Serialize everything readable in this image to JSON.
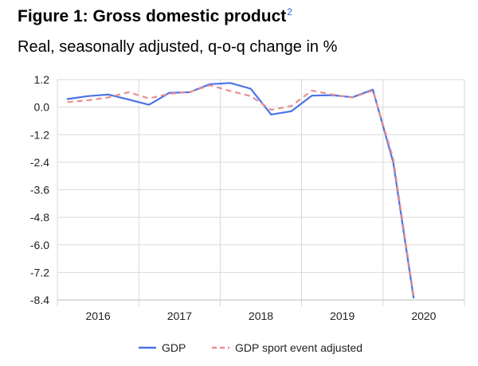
{
  "figure_label": "Figure 1:",
  "title": "Gross domestic product",
  "title_footnote": "2",
  "subtitle": "Real, seasonally adjusted, q-o-q change in %",
  "chart_data": {
    "type": "line",
    "title": "Figure 1: Gross domestic product",
    "subtitle": "Real, seasonally adjusted, q-o-q change in %",
    "xlabel": "",
    "ylabel": "",
    "ylim": [
      -8.4,
      1.2
    ],
    "yticks": [
      "1.2",
      "0.0",
      "-1.2",
      "-2.4",
      "-3.6",
      "-4.8",
      "-6.0",
      "-7.2",
      "-8.4"
    ],
    "year_labels": [
      "2016",
      "2017",
      "2018",
      "2019",
      "2020"
    ],
    "x": [
      "2016 Q1",
      "2016 Q2",
      "2016 Q3",
      "2016 Q4",
      "2017 Q1",
      "2017 Q2",
      "2017 Q3",
      "2017 Q4",
      "2018 Q1",
      "2018 Q2",
      "2018 Q3",
      "2018 Q4",
      "2019 Q1",
      "2019 Q2",
      "2019 Q3",
      "2019 Q4",
      "2020 Q1",
      "2020 Q2"
    ],
    "series": [
      {
        "name": "GDP",
        "color": "#4a72e8",
        "dash": "solid",
        "values": [
          0.35,
          0.48,
          0.55,
          0.33,
          0.1,
          0.62,
          0.65,
          1.0,
          1.05,
          0.8,
          -0.32,
          -0.18,
          0.5,
          0.52,
          0.43,
          0.76,
          -2.4,
          -8.3
        ]
      },
      {
        "name": "GDP sport event adjusted",
        "color": "#e88f8f",
        "dash": "dashed",
        "values": [
          0.22,
          0.3,
          0.42,
          0.65,
          0.38,
          0.58,
          0.66,
          0.95,
          0.7,
          0.48,
          -0.12,
          0.05,
          0.72,
          0.55,
          0.42,
          0.72,
          -2.25,
          -8.2
        ]
      }
    ],
    "grid": true,
    "legend": "bottom"
  }
}
